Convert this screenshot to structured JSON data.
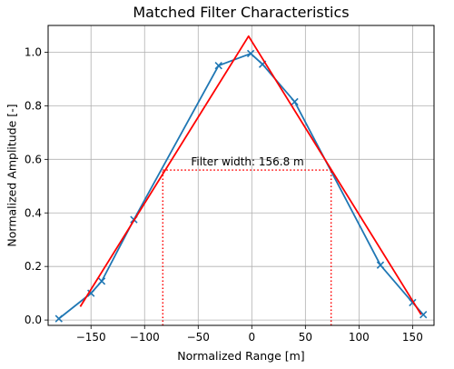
{
  "chart_data": {
    "type": "line",
    "title": "Matched Filter Characteristics",
    "xlabel": "Normalized Range [m]",
    "ylabel": "Normalized Amplitude [-]",
    "xlim": [
      -190,
      170
    ],
    "ylim": [
      -0.02,
      1.1
    ],
    "xticks": [
      -150,
      -100,
      -50,
      0,
      50,
      100,
      150
    ],
    "yticks": [
      0.0,
      0.2,
      0.4,
      0.6,
      0.8,
      1.0
    ],
    "xtick_labels": [
      "−150",
      "−100",
      "−50",
      "0",
      "50",
      "100",
      "150"
    ],
    "ytick_labels": [
      "0.0",
      "0.2",
      "0.4",
      "0.6",
      "0.8",
      "1.0"
    ],
    "grid": true,
    "series": [
      {
        "color": "#1f77b4",
        "marker": "x",
        "x": [
          -180,
          -150,
          -140,
          -110,
          -31,
          -1,
          10,
          40,
          120,
          150,
          160
        ],
        "y": [
          0.005,
          0.1,
          0.145,
          0.375,
          0.95,
          0.995,
          0.955,
          0.815,
          0.205,
          0.065,
          0.02
        ]
      },
      {
        "color": "#ff0000",
        "marker": "none",
        "x": [
          -160,
          -3,
          158
        ],
        "y": [
          0.05,
          1.06,
          0.02
        ]
      }
    ],
    "annotations": [
      {
        "text": "Filter width: 156.8 m",
        "x": -4,
        "y": 0.578,
        "color": "#ff0000",
        "style": "dotted",
        "hline": {
          "y": 0.56,
          "x0": -83,
          "x1": 74
        },
        "vlines": [
          {
            "x": -83,
            "y0": -0.02,
            "y1": 0.56
          },
          {
            "x": 74,
            "y0": -0.02,
            "y1": 0.56
          }
        ]
      }
    ]
  }
}
